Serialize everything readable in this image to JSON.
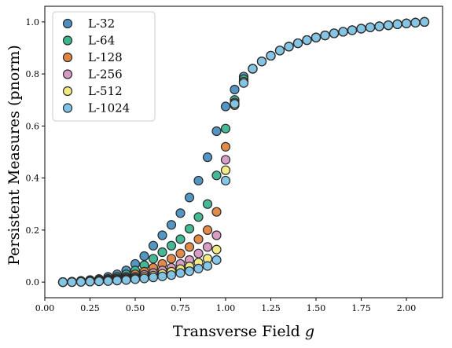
{
  "chart_data": {
    "type": "scatter",
    "title": "",
    "xlabel": "Transverse Field",
    "xlabel_symbol": "g",
    "ylabel": "Persistent Measures (pnorm)",
    "xlim": [
      -0.0,
      2.2
    ],
    "ylim": [
      -0.06,
      1.06
    ],
    "xticks": [
      0.0,
      0.25,
      0.5,
      0.75,
      1.0,
      1.25,
      1.5,
      1.75,
      2.0
    ],
    "xtick_labels": [
      "0.00",
      "0.25",
      "0.50",
      "0.75",
      "1.00",
      "1.25",
      "1.50",
      "1.75",
      "2.00"
    ],
    "yticks": [
      0.0,
      0.2,
      0.4,
      0.6,
      0.8,
      1.0
    ],
    "ytick_labels": [
      "0.0",
      "0.2",
      "0.4",
      "0.6",
      "0.8",
      "1.0"
    ],
    "grid": false,
    "legend_position": "top-left",
    "x": [
      0.1,
      0.15,
      0.2,
      0.25,
      0.3,
      0.35,
      0.4,
      0.45,
      0.5,
      0.55,
      0.6,
      0.65,
      0.7,
      0.75,
      0.8,
      0.85,
      0.9,
      0.95,
      1.0,
      1.05,
      1.1,
      1.15,
      1.2,
      1.25,
      1.3,
      1.35,
      1.4,
      1.45,
      1.5,
      1.55,
      1.6,
      1.65,
      1.7,
      1.75,
      1.8,
      1.85,
      1.9,
      1.95,
      2.0,
      2.05,
      2.1
    ],
    "series": [
      {
        "name": "L-32",
        "color": "#4a8fc0",
        "values": [
          0.0,
          0.002,
          0.005,
          0.008,
          0.012,
          0.02,
          0.03,
          0.045,
          0.07,
          0.1,
          0.14,
          0.18,
          0.22,
          0.265,
          0.325,
          0.39,
          0.48,
          0.58,
          0.675,
          0.74,
          0.79,
          0.82,
          0.848,
          0.87,
          0.89,
          0.905,
          0.918,
          0.93,
          0.94,
          0.948,
          0.956,
          0.962,
          0.968,
          0.974,
          0.979,
          0.983,
          0.987,
          0.991,
          0.994,
          0.997,
          1.0
        ]
      },
      {
        "name": "L-64",
        "color": "#3bb58f",
        "values": [
          0.0,
          0.001,
          0.003,
          0.005,
          0.008,
          0.013,
          0.02,
          0.03,
          0.045,
          0.065,
          0.09,
          0.115,
          0.14,
          0.165,
          0.205,
          0.25,
          0.3,
          0.41,
          0.59,
          0.7,
          0.78,
          0.82,
          0.848,
          0.87,
          0.89,
          0.905,
          0.918,
          0.93,
          0.94,
          0.948,
          0.956,
          0.962,
          0.968,
          0.974,
          0.979,
          0.983,
          0.987,
          0.991,
          0.994,
          0.997,
          1.0
        ]
      },
      {
        "name": "L-128",
        "color": "#e0843f",
        "values": [
          0.0,
          0.001,
          0.002,
          0.004,
          0.006,
          0.009,
          0.014,
          0.02,
          0.03,
          0.04,
          0.055,
          0.07,
          0.09,
          0.11,
          0.135,
          0.165,
          0.2,
          0.27,
          0.52,
          0.69,
          0.77,
          0.82,
          0.848,
          0.87,
          0.89,
          0.905,
          0.918,
          0.93,
          0.94,
          0.948,
          0.956,
          0.962,
          0.968,
          0.974,
          0.979,
          0.983,
          0.987,
          0.991,
          0.994,
          0.997,
          1.0
        ]
      },
      {
        "name": "L-256",
        "color": "#d699c2",
        "values": [
          0.0,
          0.001,
          0.002,
          0.003,
          0.005,
          0.007,
          0.01,
          0.015,
          0.02,
          0.028,
          0.035,
          0.045,
          0.055,
          0.07,
          0.085,
          0.11,
          0.135,
          0.18,
          0.47,
          0.685,
          0.77,
          0.82,
          0.848,
          0.87,
          0.89,
          0.905,
          0.918,
          0.93,
          0.94,
          0.948,
          0.956,
          0.962,
          0.968,
          0.974,
          0.979,
          0.983,
          0.987,
          0.991,
          0.994,
          0.997,
          1.0
        ]
      },
      {
        "name": "L-512",
        "color": "#f2ea80",
        "values": [
          0.0,
          0.001,
          0.001,
          0.002,
          0.004,
          0.005,
          0.008,
          0.011,
          0.015,
          0.02,
          0.025,
          0.032,
          0.04,
          0.05,
          0.06,
          0.075,
          0.09,
          0.125,
          0.43,
          0.68,
          0.77,
          0.82,
          0.848,
          0.87,
          0.89,
          0.905,
          0.918,
          0.93,
          0.94,
          0.948,
          0.956,
          0.962,
          0.968,
          0.974,
          0.979,
          0.983,
          0.987,
          0.991,
          0.994,
          0.997,
          1.0
        ]
      },
      {
        "name": "L-1024",
        "color": "#7ec3e8",
        "values": [
          0.0,
          0.0,
          0.001,
          0.002,
          0.003,
          0.004,
          0.006,
          0.008,
          0.011,
          0.014,
          0.018,
          0.022,
          0.027,
          0.035,
          0.042,
          0.052,
          0.062,
          0.085,
          0.39,
          0.685,
          0.765,
          0.82,
          0.848,
          0.87,
          0.89,
          0.905,
          0.918,
          0.93,
          0.94,
          0.948,
          0.956,
          0.962,
          0.968,
          0.974,
          0.979,
          0.983,
          0.987,
          0.991,
          0.994,
          0.997,
          1.0
        ]
      }
    ]
  }
}
